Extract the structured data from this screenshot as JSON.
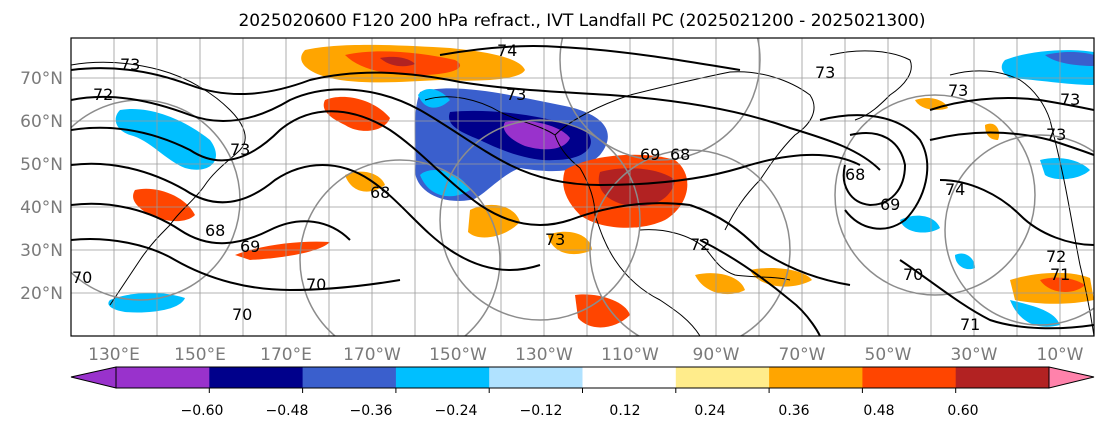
{
  "title": "2025020600 F120 200 hPa refract., IVT Landfall PC (2025021200 - 2025021300)",
  "map": {
    "lat_labels": [
      "70°N",
      "60°N",
      "50°N",
      "40°N",
      "30°N",
      "20°N"
    ],
    "lon_labels": [
      "130°E",
      "150°E",
      "170°E",
      "170°W",
      "150°W",
      "130°W",
      "110°W",
      "90°W",
      "70°W",
      "50°W",
      "30°W",
      "10°W"
    ],
    "contour_labels": [
      "74",
      "73",
      "73",
      "73",
      "69",
      "68",
      "68",
      "69",
      "70",
      "70",
      "71",
      "72",
      "73",
      "74",
      "73",
      "72",
      "69",
      "68",
      "70",
      "71",
      "70",
      "73",
      "73",
      "73",
      "72",
      "68"
    ]
  },
  "colorbar": {
    "tick_labels": [
      "−0.60",
      "−0.48",
      "−0.36",
      "−0.24",
      "−0.12",
      "0.12",
      "0.24",
      "0.36",
      "0.48",
      "0.60"
    ],
    "colors": {
      "under": "#9932cc",
      "bins": [
        "#9932cc",
        "#00008b",
        "#3a5fcd",
        "#00bfff",
        "#b0e2ff",
        "#ffffff",
        "#ffec8b",
        "#ffa500",
        "#ff4500",
        "#b22222"
      ],
      "over": "#ff82ab"
    }
  }
}
